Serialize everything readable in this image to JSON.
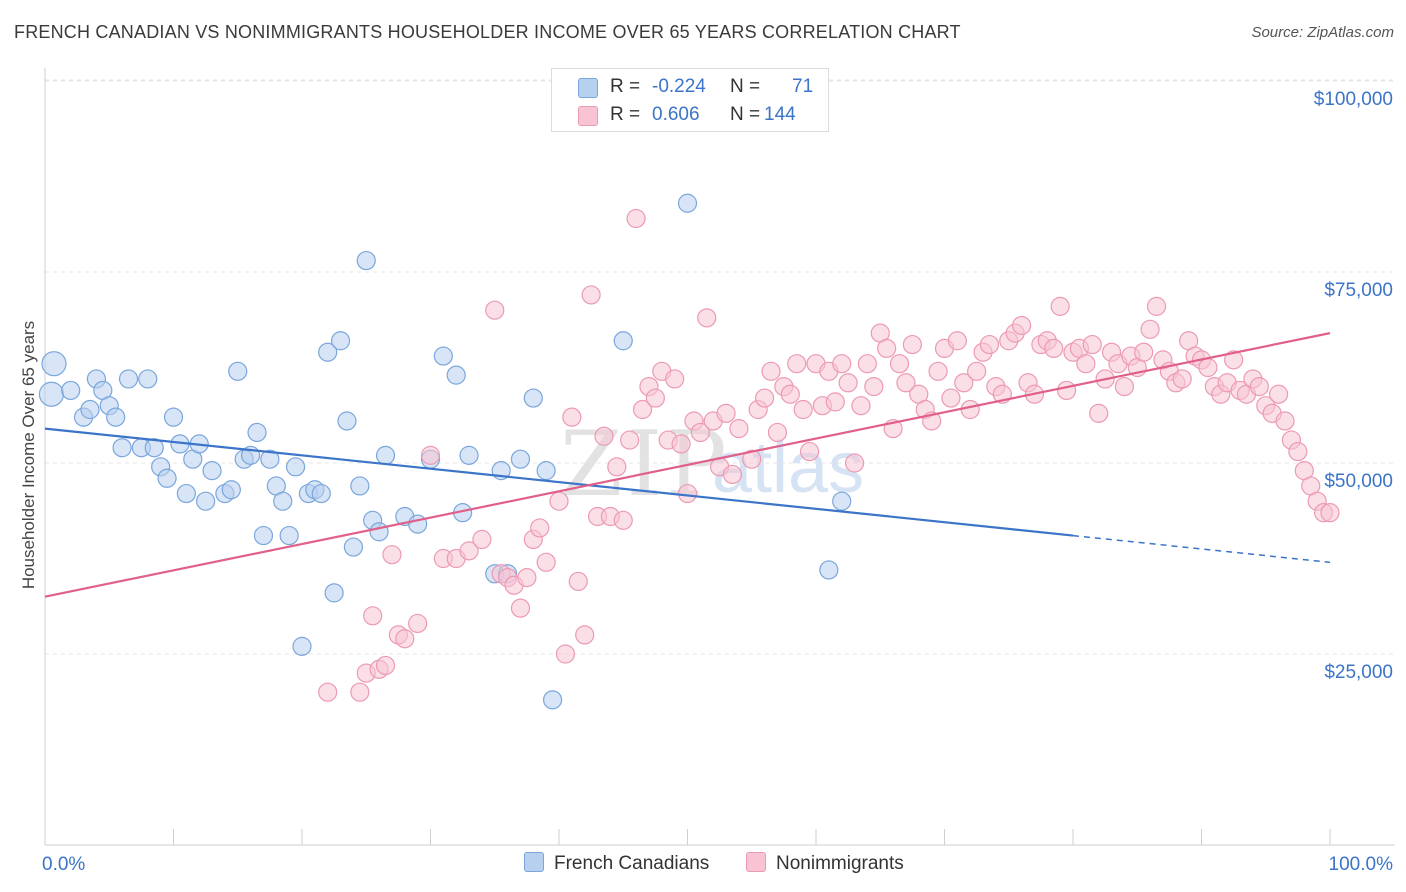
{
  "title": "FRENCH CANADIAN VS NONIMMIGRANTS HOUSEHOLDER INCOME OVER 65 YEARS CORRELATION CHART",
  "source": "Source: ZipAtlas.com",
  "watermark": {
    "zip": "ZIP",
    "atlas": "atlas"
  },
  "legend": {
    "r_label": "R =",
    "n_label": "N =",
    "rows": [
      {
        "r": "-0.224",
        "n": "71",
        "fill": "#b8d0f0",
        "stroke": "#7aa6dc"
      },
      {
        "r": "0.606",
        "n": "144",
        "fill": "#f8c4d4",
        "stroke": "#ec9ab3"
      }
    ]
  },
  "bottom_legend": [
    {
      "label": "French Canadians",
      "fill": "#b8d0f0",
      "stroke": "#7aa6dc"
    },
    {
      "label": "Nonimmigrants",
      "fill": "#f8c4d4",
      "stroke": "#ec9ab3"
    }
  ],
  "chart_data": {
    "type": "scatter",
    "title": "FRENCH CANADIAN VS NONIMMIGRANTS HOUSEHOLDER INCOME OVER 65 YEARS CORRELATION CHART",
    "xlabel": "",
    "ylabel": "Householder Income Over 65 years",
    "xlim": [
      0,
      100
    ],
    "ylim": [
      5000,
      105000
    ],
    "x_tick_labels": [
      "0.0%",
      "100.0%"
    ],
    "y_ticks": [
      25000,
      50000,
      75000,
      100000
    ],
    "y_tick_labels": [
      "$25,000",
      "$50,000",
      "$75,000",
      "$100,000"
    ],
    "grid": "horizontal dashed",
    "legend_position": "top-center",
    "colors": {
      "blue": "#3b74c8",
      "pink": "#e0608a",
      "tick_label": "#3b74c8"
    },
    "series": [
      {
        "name": "French Canadians",
        "color": "#3b74c8",
        "fill": "#b8d0f0",
        "points": [
          [
            0.5,
            59000
          ],
          [
            0.7,
            63000
          ],
          [
            2,
            59500
          ],
          [
            3,
            56000
          ],
          [
            3.5,
            57000
          ],
          [
            4,
            61000
          ],
          [
            4.5,
            59500
          ],
          [
            5,
            57500
          ],
          [
            5.5,
            56000
          ],
          [
            6,
            52000
          ],
          [
            6.5,
            61000
          ],
          [
            7.5,
            52000
          ],
          [
            8,
            61000
          ],
          [
            8.5,
            52000
          ],
          [
            9,
            49500
          ],
          [
            9.5,
            48000
          ],
          [
            10,
            56000
          ],
          [
            10.5,
            52500
          ],
          [
            11,
            46000
          ],
          [
            11.5,
            50500
          ],
          [
            12,
            52500
          ],
          [
            12.5,
            45000
          ],
          [
            13,
            49000
          ],
          [
            14,
            46000
          ],
          [
            14.5,
            46500
          ],
          [
            15,
            62000
          ],
          [
            15.5,
            50500
          ],
          [
            16,
            51000
          ],
          [
            16.5,
            54000
          ],
          [
            17,
            40500
          ],
          [
            17.5,
            50500
          ],
          [
            18,
            47000
          ],
          [
            18.5,
            45000
          ],
          [
            19,
            40500
          ],
          [
            19.5,
            49500
          ],
          [
            20,
            26000
          ],
          [
            20.5,
            46000
          ],
          [
            21,
            46500
          ],
          [
            21.5,
            46000
          ],
          [
            22,
            64500
          ],
          [
            22.5,
            33000
          ],
          [
            23,
            66000
          ],
          [
            23.5,
            55500
          ],
          [
            24,
            39000
          ],
          [
            24.5,
            47000
          ],
          [
            25,
            76500
          ],
          [
            25.5,
            42500
          ],
          [
            26,
            41000
          ],
          [
            26.5,
            51000
          ],
          [
            28,
            43000
          ],
          [
            29,
            42000
          ],
          [
            30,
            50500
          ],
          [
            31,
            64000
          ],
          [
            32,
            61500
          ],
          [
            32.5,
            43500
          ],
          [
            33,
            51000
          ],
          [
            35,
            35500
          ],
          [
            35.5,
            49000
          ],
          [
            36,
            35500
          ],
          [
            37,
            50500
          ],
          [
            38,
            58500
          ],
          [
            39,
            49000
          ],
          [
            39.5,
            19000
          ],
          [
            45,
            66000
          ],
          [
            50,
            84000
          ],
          [
            61,
            36000
          ],
          [
            62,
            45000
          ]
        ]
      },
      {
        "name": "Nonimmigrants",
        "color": "#e0608a",
        "fill": "#f8c4d4",
        "points": [
          [
            22,
            20000
          ],
          [
            24.5,
            20000
          ],
          [
            25,
            22500
          ],
          [
            25.5,
            30000
          ],
          [
            26,
            23000
          ],
          [
            26.5,
            23500
          ],
          [
            27,
            38000
          ],
          [
            27.5,
            27500
          ],
          [
            28,
            27000
          ],
          [
            29,
            29000
          ],
          [
            30,
            51000
          ],
          [
            31,
            37500
          ],
          [
            32,
            37500
          ],
          [
            33,
            38500
          ],
          [
            34,
            40000
          ],
          [
            35,
            70000
          ],
          [
            35.5,
            35500
          ],
          [
            36,
            35000
          ],
          [
            36.5,
            34000
          ],
          [
            37,
            31000
          ],
          [
            37.5,
            35000
          ],
          [
            38,
            40000
          ],
          [
            38.5,
            41500
          ],
          [
            39,
            37000
          ],
          [
            40,
            45000
          ],
          [
            40.5,
            25000
          ],
          [
            41,
            56000
          ],
          [
            41.5,
            34500
          ],
          [
            42,
            27500
          ],
          [
            42.5,
            72000
          ],
          [
            43,
            43000
          ],
          [
            43.5,
            53500
          ],
          [
            44,
            43000
          ],
          [
            44.5,
            49500
          ],
          [
            45,
            42500
          ],
          [
            45.5,
            53000
          ],
          [
            46,
            82000
          ],
          [
            46.5,
            57000
          ],
          [
            47,
            60000
          ],
          [
            47.5,
            58500
          ],
          [
            48,
            62000
          ],
          [
            48.5,
            53000
          ],
          [
            49,
            61000
          ],
          [
            49.5,
            52500
          ],
          [
            50,
            46000
          ],
          [
            50.5,
            55500
          ],
          [
            51,
            54000
          ],
          [
            51.5,
            69000
          ],
          [
            52,
            55500
          ],
          [
            52.5,
            49500
          ],
          [
            53,
            56500
          ],
          [
            53.5,
            48500
          ],
          [
            54,
            54500
          ],
          [
            55,
            50500
          ],
          [
            55.5,
            57000
          ],
          [
            56,
            58500
          ],
          [
            56.5,
            62000
          ],
          [
            57,
            54000
          ],
          [
            57.5,
            60000
          ],
          [
            58,
            59000
          ],
          [
            58.5,
            63000
          ],
          [
            59,
            57000
          ],
          [
            59.5,
            51500
          ],
          [
            60,
            63000
          ],
          [
            60.5,
            57500
          ],
          [
            61,
            62000
          ],
          [
            61.5,
            58000
          ],
          [
            62,
            63000
          ],
          [
            62.5,
            60500
          ],
          [
            63,
            50000
          ],
          [
            63.5,
            57500
          ],
          [
            64,
            63000
          ],
          [
            64.5,
            60000
          ],
          [
            65,
            67000
          ],
          [
            65.5,
            65000
          ],
          [
            66,
            54500
          ],
          [
            66.5,
            63000
          ],
          [
            67,
            60500
          ],
          [
            67.5,
            65500
          ],
          [
            68,
            59000
          ],
          [
            68.5,
            57000
          ],
          [
            69,
            55500
          ],
          [
            69.5,
            62000
          ],
          [
            70,
            65000
          ],
          [
            70.5,
            58500
          ],
          [
            71,
            66000
          ],
          [
            71.5,
            60500
          ],
          [
            72,
            57000
          ],
          [
            72.5,
            62000
          ],
          [
            73,
            64500
          ],
          [
            73.5,
            65500
          ],
          [
            74,
            60000
          ],
          [
            74.5,
            59000
          ],
          [
            75,
            66000
          ],
          [
            75.5,
            67000
          ],
          [
            76,
            68000
          ],
          [
            76.5,
            60500
          ],
          [
            77,
            59000
          ],
          [
            77.5,
            65500
          ],
          [
            78,
            66000
          ],
          [
            78.5,
            65000
          ],
          [
            79,
            70500
          ],
          [
            79.5,
            59500
          ],
          [
            80,
            64500
          ],
          [
            80.5,
            65000
          ],
          [
            81,
            63000
          ],
          [
            81.5,
            65500
          ],
          [
            82,
            56500
          ],
          [
            82.5,
            61000
          ],
          [
            83,
            64500
          ],
          [
            83.5,
            63000
          ],
          [
            84,
            60000
          ],
          [
            84.5,
            64000
          ],
          [
            85,
            62500
          ],
          [
            85.5,
            64500
          ],
          [
            86,
            67500
          ],
          [
            86.5,
            70500
          ],
          [
            87,
            63500
          ],
          [
            87.5,
            62000
          ],
          [
            88,
            60500
          ],
          [
            88.5,
            61000
          ],
          [
            89,
            66000
          ],
          [
            89.5,
            64000
          ],
          [
            90,
            63500
          ],
          [
            90.5,
            62500
          ],
          [
            91,
            60000
          ],
          [
            91.5,
            59000
          ],
          [
            92,
            60500
          ],
          [
            92.5,
            63500
          ],
          [
            93,
            59500
          ],
          [
            93.5,
            59000
          ],
          [
            94,
            61000
          ],
          [
            94.5,
            60000
          ],
          [
            95,
            57500
          ],
          [
            95.5,
            56500
          ],
          [
            96,
            59000
          ],
          [
            96.5,
            55500
          ],
          [
            97,
            53000
          ],
          [
            97.5,
            51500
          ],
          [
            98,
            49000
          ],
          [
            98.5,
            47000
          ],
          [
            99,
            45000
          ],
          [
            99.5,
            43500
          ],
          [
            100,
            43500
          ]
        ]
      }
    ],
    "trendlines": [
      {
        "series": "French Canadians",
        "x0": 0,
        "y0": 54500,
        "x1": 80,
        "y1": 40500,
        "dashed_to_x": 100,
        "dashed_to_y": 37000
      },
      {
        "series": "Nonimmigrants",
        "x0": 0,
        "y0": 32500,
        "x1": 100,
        "y1": 67000
      }
    ]
  }
}
